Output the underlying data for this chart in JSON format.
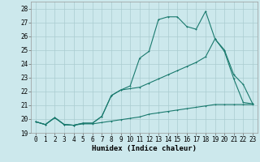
{
  "xlabel": "Humidex (Indice chaleur)",
  "background_color": "#cce8ec",
  "grid_color": "#aaccd0",
  "line_color": "#1a7a6e",
  "line1_x": [
    0,
    1,
    2,
    3,
    4,
    5,
    6,
    7,
    8,
    9,
    10,
    11,
    12,
    13,
    14,
    15,
    16,
    17,
    18,
    19,
    20,
    21,
    22,
    23
  ],
  "line1_y": [
    19.8,
    19.6,
    20.1,
    19.6,
    19.55,
    19.7,
    19.7,
    20.2,
    21.7,
    22.1,
    22.4,
    24.4,
    24.9,
    27.2,
    27.4,
    27.4,
    26.7,
    26.5,
    27.8,
    25.8,
    25.0,
    23.2,
    22.5,
    21.1
  ],
  "line2_x": [
    0,
    1,
    2,
    3,
    4,
    5,
    6,
    7,
    8,
    9,
    10,
    11,
    12,
    13,
    14,
    15,
    16,
    17,
    18,
    19,
    20,
    21,
    22,
    23
  ],
  "line2_y": [
    19.8,
    19.6,
    20.1,
    19.6,
    19.55,
    19.7,
    19.7,
    20.2,
    21.7,
    22.1,
    22.2,
    22.3,
    22.6,
    22.9,
    23.2,
    23.5,
    23.8,
    24.1,
    24.5,
    25.8,
    24.9,
    22.9,
    21.2,
    21.1
  ],
  "line3_x": [
    0,
    1,
    2,
    3,
    4,
    5,
    6,
    7,
    8,
    9,
    10,
    11,
    12,
    13,
    14,
    15,
    16,
    17,
    18,
    19,
    20,
    21,
    22,
    23
  ],
  "line3_y": [
    19.8,
    19.6,
    20.1,
    19.6,
    19.55,
    19.65,
    19.65,
    19.75,
    19.85,
    19.95,
    20.05,
    20.15,
    20.35,
    20.45,
    20.55,
    20.65,
    20.75,
    20.85,
    20.95,
    21.05,
    21.05,
    21.05,
    21.05,
    21.05
  ],
  "ylim": [
    19,
    28.5
  ],
  "xlim": [
    -0.5,
    23.5
  ],
  "yticks": [
    19,
    20,
    21,
    22,
    23,
    24,
    25,
    26,
    27,
    28
  ],
  "xticks": [
    0,
    1,
    2,
    3,
    4,
    5,
    6,
    7,
    8,
    9,
    10,
    11,
    12,
    13,
    14,
    15,
    16,
    17,
    18,
    19,
    20,
    21,
    22,
    23
  ],
  "fontsize_tick": 5.5,
  "fontsize_xlabel": 6.5,
  "linewidth": 0.8,
  "markersize": 2.0
}
